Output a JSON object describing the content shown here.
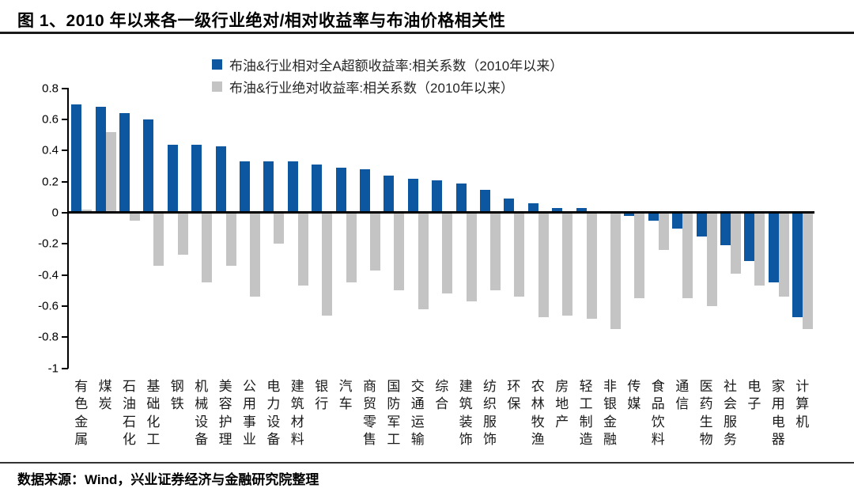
{
  "figure": {
    "title": "图 1、2010 年以来各一级行业绝对/相对收益率与布油价格相关性",
    "source_note": "数据来源：Wind，兴业证券经济与金融研究院整理"
  },
  "colors": {
    "relative_series": "#0d57a0",
    "absolute_series": "#c4c4c4",
    "axis": "#000000"
  },
  "chart_data": {
    "type": "bar",
    "title": "图 1、2010 年以来各一级行业绝对/相对收益率与布油价格相关性",
    "xlabel": "",
    "ylabel": "",
    "ylim": [
      -1,
      0.8
    ],
    "grid": false,
    "legend_position": "top-center",
    "y_ticks": [
      0.8,
      0.6,
      0.4,
      0.2,
      0,
      -0.2,
      -0.4,
      -0.6,
      -0.8,
      -1
    ],
    "y_tick_labels": [
      "0.8",
      "0.6",
      "0.4",
      "0.2",
      "0",
      "-0.2",
      "-0.4",
      "-0.6",
      "-0.8",
      "-1"
    ],
    "categories": [
      "有色金属",
      "煤炭",
      "石油石化",
      "基础化工",
      "钢铁",
      "机械设备",
      "美容护理",
      "公用事业",
      "电力设备",
      "建筑材料",
      "银行",
      "汽车",
      "商贸零售",
      "国防军工",
      "交通运输",
      "综合",
      "建筑装饰",
      "纺织服饰",
      "环保",
      "农林牧渔",
      "房地产",
      "轻工制造",
      "非银金融",
      "传媒",
      "食品饮料",
      "通信",
      "医药生物",
      "社会服务",
      "电子",
      "家用电器",
      "计算机"
    ],
    "series": [
      {
        "key": "relative",
        "name": "布油&行业相对全A超额收益率:相关系数（2010年以来）",
        "color": "#0d57a0",
        "values": [
          0.7,
          0.68,
          0.64,
          0.6,
          0.44,
          0.44,
          0.43,
          0.33,
          0.33,
          0.33,
          0.31,
          0.29,
          0.28,
          0.24,
          0.22,
          0.21,
          0.19,
          0.15,
          0.09,
          0.06,
          0.03,
          0.03,
          0.0,
          -0.02,
          -0.05,
          -0.1,
          -0.15,
          -0.21,
          -0.31,
          -0.45,
          -0.67
        ]
      },
      {
        "key": "absolute",
        "name": "布油&行业绝对收益率:相关系数（2010年以来）",
        "color": "#c4c4c4",
        "values": [
          0.02,
          0.52,
          -0.05,
          -0.34,
          -0.27,
          -0.45,
          -0.34,
          -0.54,
          -0.2,
          -0.47,
          -0.66,
          -0.45,
          -0.37,
          -0.5,
          -0.62,
          -0.52,
          -0.57,
          -0.5,
          -0.54,
          -0.67,
          -0.66,
          -0.68,
          -0.75,
          -0.55,
          -0.24,
          -0.55,
          -0.6,
          -0.39,
          -0.47,
          -0.54,
          -0.75
        ]
      }
    ]
  }
}
